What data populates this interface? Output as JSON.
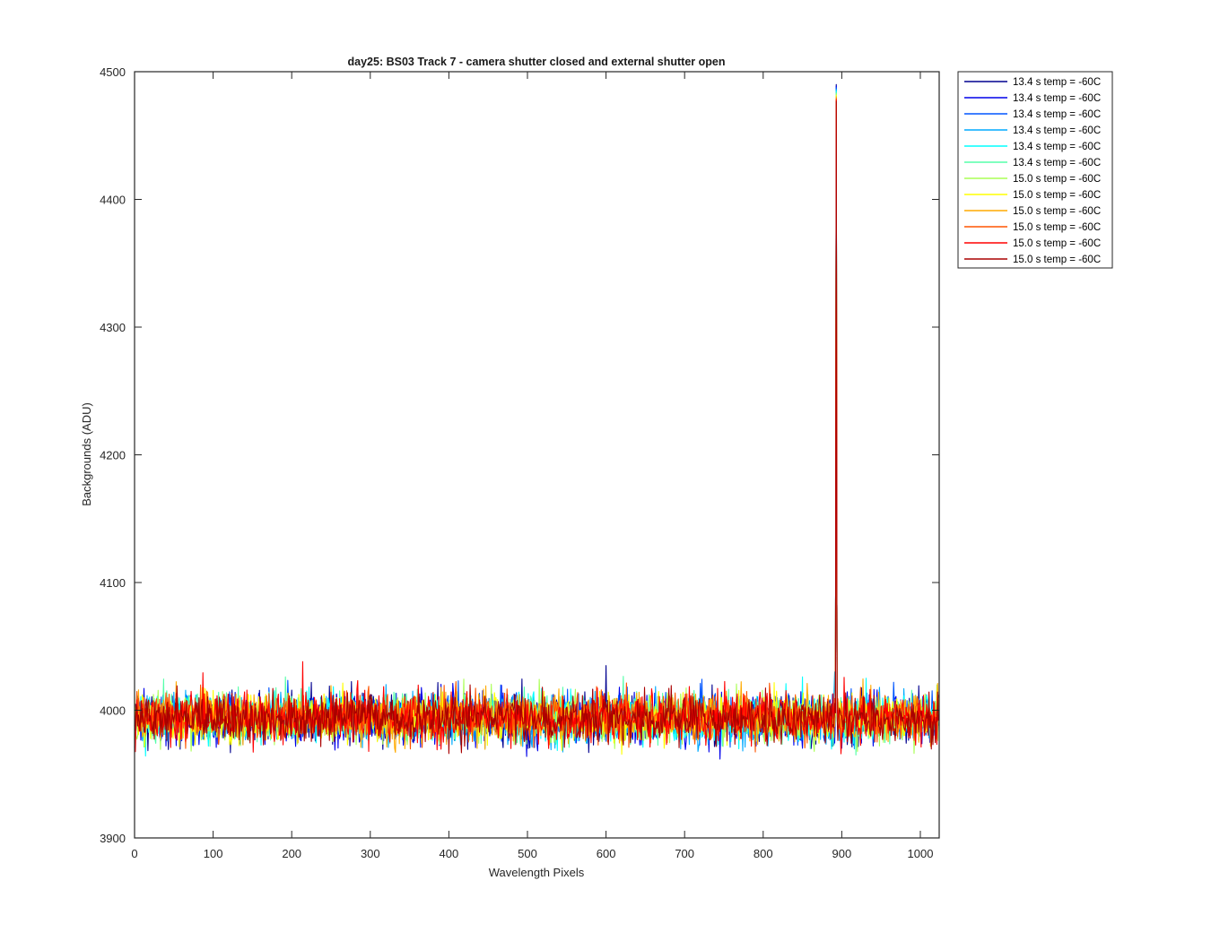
{
  "chart_data": {
    "type": "line",
    "title": "day25: BS03  Track 7 - camera shutter closed and external shutter open",
    "xlabel": "Wavelength Pixels",
    "ylabel": "Backgrounds (ADU)",
    "xlim": [
      0,
      1024
    ],
    "ylim": [
      3900,
      4500
    ],
    "xticks": [
      0,
      100,
      200,
      300,
      400,
      500,
      600,
      700,
      800,
      900,
      1000
    ],
    "yticks": [
      3900,
      4000,
      4100,
      4200,
      4300,
      4400,
      4500
    ],
    "grid": false,
    "legend_position": "outside-top-right",
    "n_points": 1024,
    "baseline": 3994,
    "noise_amplitude": 14,
    "series": [
      {
        "name": "13.4 s temp = -60C",
        "color": "#00008f"
      },
      {
        "name": "13.4 s temp = -60C",
        "color": "#0000ea"
      },
      {
        "name": "13.4 s temp = -60C",
        "color": "#0055ff"
      },
      {
        "name": "13.4 s temp = -60C",
        "color": "#00aaff"
      },
      {
        "name": "13.4 s temp = -60C",
        "color": "#00ffff"
      },
      {
        "name": "13.4 s temp = -60C",
        "color": "#55ffaa"
      },
      {
        "name": "15.0 s temp = -60C",
        "color": "#aaff55"
      },
      {
        "name": "15.0 s temp = -60C",
        "color": "#ffff00"
      },
      {
        "name": "15.0 s temp = -60C",
        "color": "#ffaa00"
      },
      {
        "name": "15.0 s temp = -60C",
        "color": "#ff5500"
      },
      {
        "name": "15.0 s temp = -60C",
        "color": "#ff0000"
      },
      {
        "name": "15.0 s temp = -60C",
        "color": "#aa0000"
      }
    ],
    "spike": {
      "x": 893,
      "y": 4490
    },
    "notable_points": [
      {
        "x": 214,
        "y": 4038
      },
      {
        "x": 600,
        "y": 4035
      },
      {
        "x": 891,
        "y": 4030
      }
    ]
  }
}
